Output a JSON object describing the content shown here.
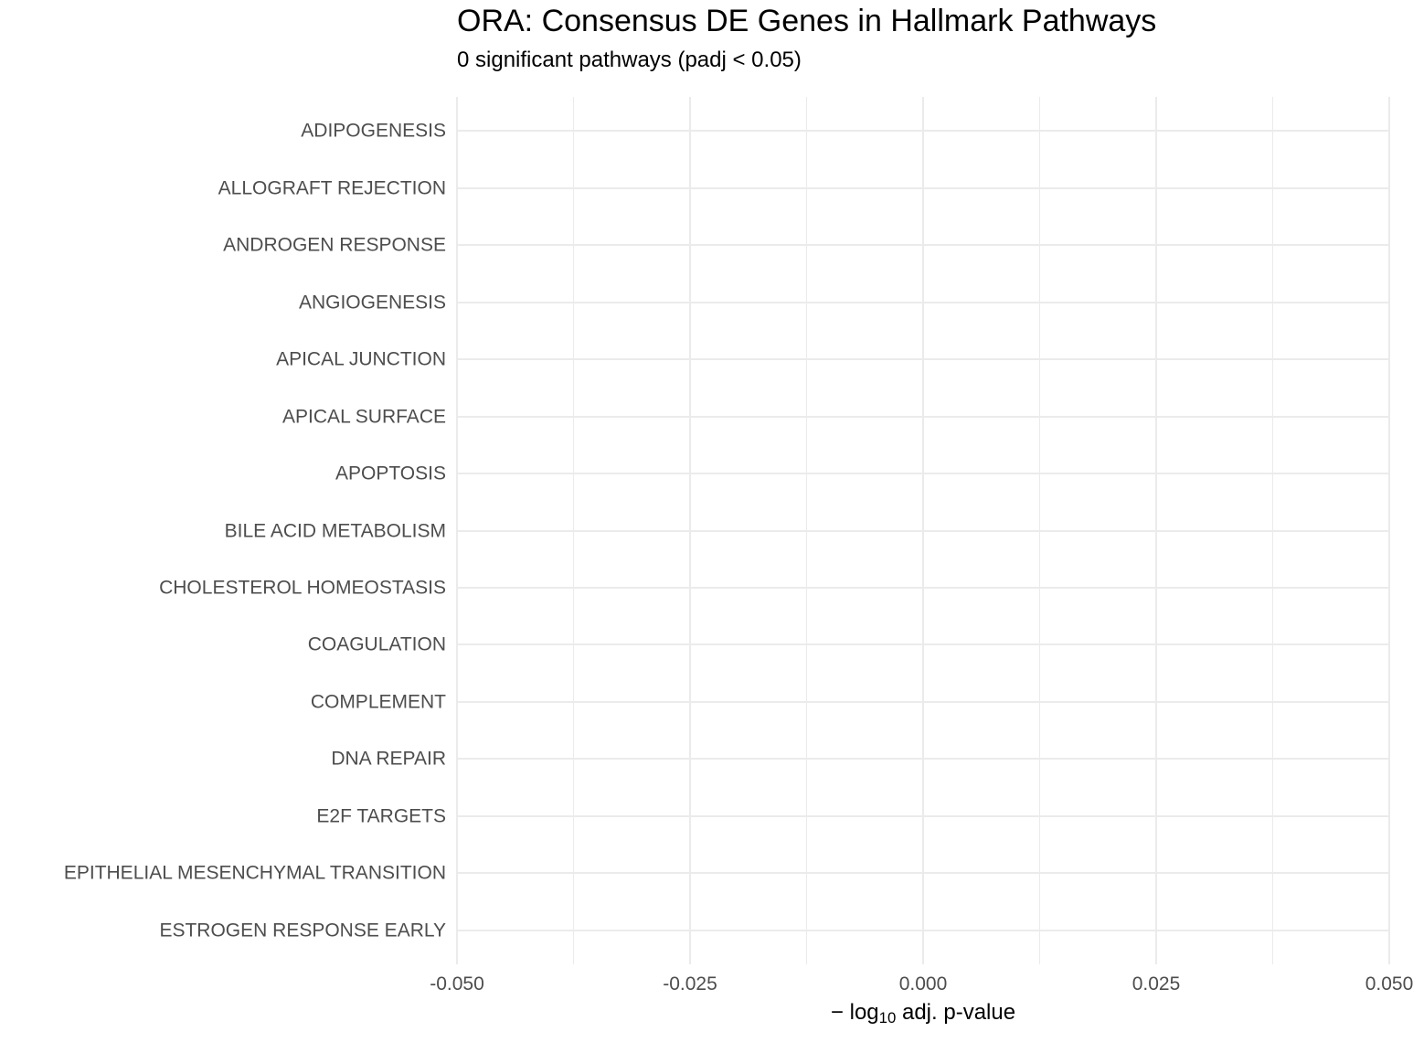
{
  "chart_data": {
    "type": "bar",
    "orientation": "horizontal",
    "title": "ORA: Consensus DE Genes in Hallmark Pathways",
    "subtitle": "0 significant pathways (padj < 0.05)",
    "xlabel": "− log10 adj. p-value",
    "xlabel_parts": {
      "pre": "− log",
      "sub": "10",
      "post": " adj. p-value"
    },
    "significant_pathways_count": 0,
    "significance_threshold": "padj < 0.05",
    "categories": [
      "ADIPOGENESIS",
      "ALLOGRAFT REJECTION",
      "ANDROGEN RESPONSE",
      "ANGIOGENESIS",
      "APICAL JUNCTION",
      "APICAL SURFACE",
      "APOPTOSIS",
      "BILE ACID METABOLISM",
      "CHOLESTEROL HOMEOSTASIS",
      "COAGULATION",
      "COMPLEMENT",
      "DNA REPAIR",
      "E2F TARGETS",
      "EPITHELIAL MESENCHYMAL TRANSITION",
      "ESTROGEN RESPONSE EARLY"
    ],
    "values": [],
    "xlim": [
      -0.05,
      0.05
    ],
    "x_tick_values": [
      -0.05,
      -0.025,
      0.0,
      0.025,
      0.05
    ],
    "x_tick_labels": [
      "-0.050",
      "-0.025",
      "0.000",
      "0.025",
      "0.050"
    ],
    "x_minor_tick_values": [
      -0.0375,
      -0.0125,
      0.0125,
      0.0375
    ],
    "grid": true,
    "legend_position": "none",
    "colors": {
      "background": "#FFFFFF",
      "grid": "#EBEBEB",
      "axis_text": "#4D4D4D",
      "title_text": "#000000"
    }
  }
}
